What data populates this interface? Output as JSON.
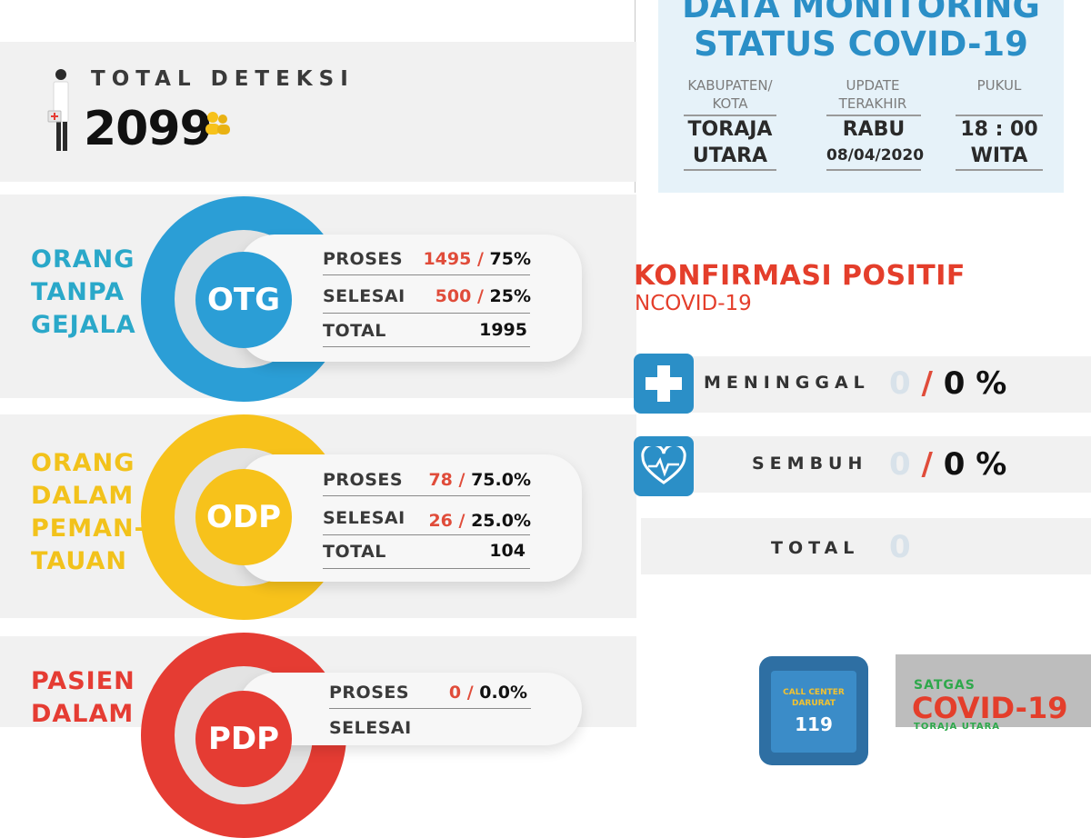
{
  "header": {
    "title_line1": "DATA MONITORING",
    "title_line2": "STATUS COVID-19",
    "kabupaten_label": "KABUPATEN/\nKOTA",
    "kabupaten_value": "TORAJA\nUTARA",
    "update_label": "UPDATE\nTERAKHIR",
    "update_day": "RABU",
    "update_date": "08/04/2020",
    "pukul_label": "PUKUL",
    "pukul_value": "18 : 00\nWITA"
  },
  "total_deteksi": {
    "label": "TOTAL DETEKSI",
    "value": "2099"
  },
  "categories": [
    {
      "title": "ORANG\nTANPA\nGEJALA",
      "code": "OTG",
      "color": "#2b9ed6",
      "proses_label": "PROSES",
      "proses_value": "1495",
      "proses_pct": "75%",
      "selesai_label": "SELESAI",
      "selesai_value": "500",
      "selesai_pct": "25%",
      "total_label": "TOTAL",
      "total_value": "1995"
    },
    {
      "title": "ORANG\nDALAM\nPEMAN-\nTAUAN",
      "code": "ODP",
      "color": "#f7c21b",
      "proses_label": "PROSES",
      "proses_value": "78",
      "proses_pct": "75.0%",
      "selesai_label": "SELESAI",
      "selesai_value": "26",
      "selesai_pct": "25.0%",
      "total_label": "TOTAL",
      "total_value": "104"
    },
    {
      "title": "PASIEN\nDALAM",
      "code": "PDP",
      "color": "#e53c33",
      "proses_label": "PROSES",
      "proses_value": "0",
      "proses_pct": "0.0%",
      "selesai_label": "SELESAI"
    }
  ],
  "konfirmasi": {
    "title": "KONFIRMASI POSITIF",
    "subtitle": "NCOVID-19",
    "meninggal_label": "MENINGGAL",
    "meninggal_value": "0",
    "meninggal_pct": "0 %",
    "sembuh_label": "SEMBUH",
    "sembuh_value": "0",
    "sembuh_pct": "0 %",
    "total_label": "TOTAL",
    "total_value": "0"
  },
  "callcenter": {
    "line1": "CALL CENTER",
    "line2": "DARURAT",
    "number": "119"
  },
  "satgas": {
    "label": "SATGAS",
    "big": "COVID-19",
    "sub": "TORAJA UTARA"
  },
  "colors": {
    "blue": "#2b9ed6",
    "yellow": "#f7c21b",
    "red": "#e53c33",
    "accent_red": "#e04c3a"
  }
}
